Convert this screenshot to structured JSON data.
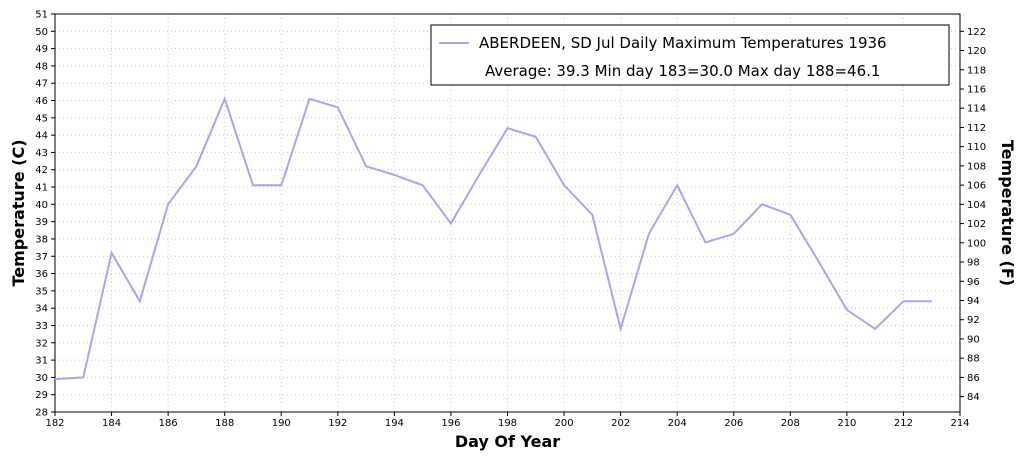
{
  "chart_data": {
    "type": "line",
    "title": "",
    "xlabel": "Day Of Year",
    "ylabel_left": "Temperature (C)",
    "ylabel_right": "Temperature (F)",
    "xlim": [
      182,
      214
    ],
    "ylim": [
      28,
      51
    ],
    "ylim_right": [
      82.4,
      123.8
    ],
    "x_ticks": [
      182,
      184,
      186,
      188,
      190,
      192,
      194,
      196,
      198,
      200,
      202,
      204,
      206,
      208,
      210,
      212,
      214
    ],
    "y_ticks_left": [
      28,
      29,
      30,
      31,
      32,
      33,
      34,
      35,
      36,
      37,
      38,
      39,
      40,
      41,
      42,
      43,
      44,
      45,
      46,
      47,
      48,
      49,
      50,
      51
    ],
    "y_ticks_right": [
      84,
      86,
      88,
      90,
      92,
      94,
      96,
      98,
      100,
      102,
      104,
      106,
      108,
      110,
      112,
      114,
      116,
      118,
      120,
      122
    ],
    "grid": true,
    "legend_position": "top-right",
    "colors": {
      "series": "#a6a6f2",
      "grid": "#c8c8c8"
    },
    "legend": {
      "line1": "ABERDEEN, SD  Jul  Daily Maximum Temperatures 1936",
      "line2": "Average: 39.3  Min day 183=30.0  Max day 188=46.1"
    },
    "series": [
      {
        "x": [
          182,
          183,
          184,
          185,
          186,
          187,
          188,
          189,
          190,
          191,
          192,
          193,
          194,
          195,
          196,
          197,
          198,
          199,
          200,
          201,
          202,
          203,
          204,
          205,
          206,
          207,
          208,
          209,
          210,
          211,
          212,
          213
        ],
        "values": [
          29.9,
          30.0,
          37.2,
          34.4,
          40.0,
          42.2,
          46.1,
          41.1,
          41.1,
          46.1,
          45.6,
          42.2,
          41.7,
          41.1,
          38.9,
          41.7,
          44.4,
          43.9,
          41.1,
          39.4,
          32.8,
          38.3,
          41.1,
          37.8,
          38.3,
          40.0,
          39.4,
          36.7,
          33.9,
          32.8,
          34.4,
          34.4
        ]
      }
    ]
  }
}
